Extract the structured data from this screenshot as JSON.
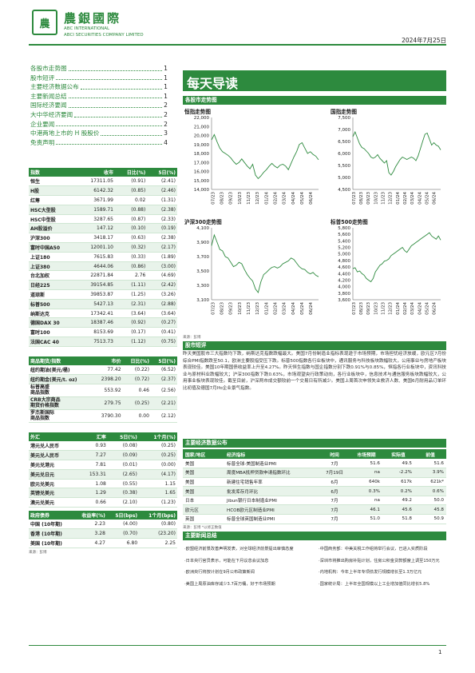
{
  "header": {
    "logo_glyph": "農",
    "brand_cn": "農銀國際",
    "brand_en1": "ABC INTERNATIONAL",
    "brand_en2": "ABCI SECURITIES COMPANY LIMITED",
    "date": "2024年7月25日",
    "brand_color": "#2d8a3e"
  },
  "toc": [
    {
      "title": "各股市走势图",
      "page": "1"
    },
    {
      "title": "股市短评",
      "page": "1"
    },
    {
      "title": "主要经济数据公布",
      "page": "1"
    },
    {
      "title": "主要新闻总结",
      "page": "1"
    },
    {
      "title": "国际经济要闻",
      "page": "2"
    },
    {
      "title": "大中华经济要闻",
      "page": "2"
    },
    {
      "title": "企业要闻",
      "page": "2"
    },
    {
      "title": "中港两地上市的 H 股股价",
      "page": "3"
    },
    {
      "title": "免责声明",
      "page": "4"
    }
  ],
  "indices": {
    "headers": [
      "指数",
      "收市",
      "日比(%)",
      "5日(%)"
    ],
    "rows": [
      [
        "恒生",
        "17311.05",
        "(0.91)",
        "(2.41)"
      ],
      [
        "H股",
        "6142.32",
        "(0.85)",
        "(2.46)"
      ],
      [
        "红筹",
        "3671.99",
        "0.02",
        "(1.31)"
      ],
      [
        "HSC大型股",
        "1589.71",
        "(0.88)",
        "(2.38)"
      ],
      [
        "HSC中型股",
        "3287.65",
        "(0.87)",
        "(2.33)"
      ],
      [
        "AH股溢价",
        "147.12",
        "(0.10)",
        "(0.19)"
      ],
      [
        "沪深300",
        "3418.17",
        "(0.63)",
        "(2.38)"
      ],
      [
        "富时中国A50",
        "12001.10",
        "(0.32)",
        "(2.17)"
      ],
      [
        "上证180",
        "7615.83",
        "(0.33)",
        "(1.89)"
      ],
      [
        "上证380",
        "4644.06",
        "(0.86)",
        "(3.00)"
      ],
      [
        "台北加权",
        "22871.84",
        "2.76",
        "(4.69)"
      ],
      [
        "日经225",
        "39154.85",
        "(1.11)",
        "(2.42)"
      ],
      [
        "道琼斯",
        "39853.87",
        "(1.25)",
        "(3.26)"
      ],
      [
        "标普500",
        "5427.13",
        "(2.31)",
        "(2.88)"
      ],
      [
        "纳斯达克",
        "17342.41",
        "(3.64)",
        "(3.64)"
      ],
      [
        "德国DAX 30",
        "18387.46",
        "(0.92)",
        "(0.27)"
      ],
      [
        "富时100",
        "8153.69",
        "(0.17)",
        "(0.41)"
      ],
      [
        "法国CAC 40",
        "7513.73",
        "(1.12)",
        "(0.75)"
      ]
    ]
  },
  "commodities": {
    "headers": [
      "商品期货/指数",
      "市价",
      "日比(%)",
      "5日(%)"
    ],
    "rows": [
      [
        "纽约期油(美元/桶)",
        "77.42",
        "(0.22)",
        "(6.52)"
      ],
      [
        "纽约期金(美元/t. oz)",
        "2398.20",
        "(0.72)",
        "(2.37)"
      ],
      [
        "标普高盛\n商品指数",
        "553.92",
        "0.46",
        "(2.56)"
      ],
      [
        "CRB大宗商品\n期货价格指数",
        "279.75",
        "(0.25)",
        "(2.21)"
      ],
      [
        "罗杰斯国际\n商品指数",
        "3790.30",
        "0.00",
        "(2.12)"
      ]
    ]
  },
  "fx": {
    "headers": [
      "外汇",
      "汇率",
      "5日(%)",
      "1个月(%)"
    ],
    "rows": [
      [
        "港元兑人民币",
        "0.93",
        "(0.08)",
        "(0.25)"
      ],
      [
        "美元兑人民币",
        "7.27",
        "(0.09)",
        "(0.25)"
      ],
      [
        "美元兑港元",
        "7.81",
        "(0.01)",
        "(0.00)"
      ],
      [
        "美元兑日元",
        "153.31",
        "(2.65)",
        "(4.17)"
      ],
      [
        "欧元兑美元",
        "1.08",
        "(0.55)",
        "1.15"
      ],
      [
        "英镑兑美元",
        "1.29",
        "(0.38)",
        "1.65"
      ],
      [
        "澳元兑美元",
        "0.66",
        "(2.10)",
        "(1.23)"
      ]
    ]
  },
  "bonds": {
    "headers": [
      "政府债券",
      "收益率(%)",
      "5日(bps)",
      "1个月(bps)"
    ],
    "rows": [
      [
        "中国 (10年期)",
        "2.23",
        "(4.00)",
        "(0.80)"
      ],
      [
        "香港 (10年期)",
        "3.28",
        "(0.70)",
        "(23.20)"
      ],
      [
        "美国 (10年期)",
        "4.27",
        "6.80",
        "2.25"
      ]
    ]
  },
  "source_note": "来源：彭博",
  "main": {
    "title": "每天导读",
    "charts_section": "各股市走势图",
    "chart_source": "来源：彭博",
    "commentary_title": "股市短评",
    "commentary": "昨天美国股市三大指数均下跌，纳斯达克指数跌幅最大。美国7月份制造业指标表现逊于市场预期，市场担忧经济放缓，欧元区7月份综合PMI指数跌至50.1，欧洲主要股指受压下跌。标普500指数各行业板块中，通讯服务与科技板块跌幅较大，公用事业与房地产板块表现较佳。美国10年期国债收益率上升至4.27%。昨天恒生指数与国企指数分别下跌0.91%与0.85%，恒指各行业板块中，资讯科技业与原材料业跌幅较大；沪深300指数下跌0.63%，市场观望央行政策动向，各行业板块中，信息技术与通信服务板块跌幅较大，公用事业板块表现较佳。截至目前，沪深两市成交额较前一个交易日有所减少。美国上周首次申领失业救济人数、美国6月耐用品订单环比初值及德国7月Ifo企业景气指数。",
    "econ_title": "主要经济数据公布",
    "econ_headers": [
      "国家/地区",
      "经济指标",
      "时间",
      "市场预期",
      "实际值",
      "前值"
    ],
    "econ_rows": [
      [
        "美国",
        "标普全球-美国制造业PMI",
        "7月",
        "51.6",
        "49.5",
        "51.6"
      ],
      [
        "美国",
        "周度MBA抵押贷款申请指数环比",
        "7月19日",
        "na",
        "-2.2%",
        "3.9%"
      ],
      [
        "美国",
        "新建住宅销售年率",
        "6月",
        "640k",
        "617k",
        "621k*"
      ],
      [
        "美国",
        "批发库存月环比",
        "6月",
        "0.3%",
        "0.2%",
        "0.6%"
      ],
      [
        "日本",
        "Jibun银行日本制造业PMI",
        "7月",
        "na",
        "49.2",
        "50.0"
      ],
      [
        "欧元区",
        "HCOB欧元区制造业PMI",
        "7月",
        "46.1",
        "45.6",
        "45.8"
      ],
      [
        "英国",
        "标普全球英国制造业PMI",
        "7月",
        "51.0",
        "51.8",
        "50.9"
      ]
    ],
    "econ_note": "来源：彭博 *以修正数值",
    "news_title": "主要新闻总结",
    "news_left": [
      "·欧盟经济前景改善声明发表，对全球经济前景提出审慎态度",
      "·日本央行官员表示，可能在下月议息会议加息",
      "·欧洲央行将按计划在9月公布政策新闻",
      "·美国上周原油库存减少3.7百万桶，好于市场预期"
    ],
    "news_right": [
      "·中国商务部：中美关税工作组将举行会议，已进入实质阶段",
      "·深圳市将推出购房补贴计划，住房公积金贷款额度上调至150万元",
      "·内地机构：今年上半年专项债发行规模增长至1.3万亿元",
      "·国家统计局：上半年全国规模以上工业增加值同比增长5.8%"
    ]
  },
  "charts": [
    {
      "name": "恒指走势图",
      "type": "line",
      "color": "#2d8a3e",
      "ylim": [
        14000,
        22000
      ],
      "yticks": [
        "22,000",
        "21,000",
        "20,000",
        "19,000",
        "18,000",
        "17,000",
        "16,000",
        "15,000",
        "14,000"
      ],
      "xticks": [
        "07/23",
        "08/23",
        "09/23",
        "10/23",
        "11/23",
        "12/23",
        "01/24",
        "02/24",
        "03/24",
        "04/24",
        "05/24",
        "06/24"
      ],
      "values": [
        19500,
        20100,
        19300,
        18600,
        18200,
        18000,
        17800,
        17500,
        17100,
        16800,
        17000,
        17400,
        17000,
        16600,
        16300,
        16800,
        15600,
        15200,
        15500,
        15900,
        16200,
        16600,
        16900,
        16600,
        16400,
        16700,
        16800,
        16600,
        16200,
        16900,
        17600,
        18200,
        19000,
        19200,
        18600,
        18000,
        18200,
        17900,
        17700,
        17300
      ]
    },
    {
      "name": "国指走势图",
      "type": "line",
      "color": "#2d8a3e",
      "ylim": [
        4500,
        7500
      ],
      "yticks": [
        "7,500",
        "7,000",
        "6,500",
        "6,000",
        "5,500",
        "5,000",
        "4,500"
      ],
      "xticks": [
        "07/23",
        "08/23",
        "09/23",
        "10/23",
        "11/23",
        "12/23",
        "01/24",
        "02/24",
        "03/24",
        "04/24",
        "05/24",
        "06/24"
      ],
      "values": [
        6700,
        6900,
        6650,
        6400,
        6250,
        6200,
        6100,
        6000,
        5850,
        5800,
        5850,
        5950,
        5800,
        5700,
        5600,
        5700,
        5200,
        5100,
        5250,
        5450,
        5600,
        5750,
        5850,
        5800,
        5750,
        5800,
        5850,
        5800,
        5700,
        5900,
        6200,
        6500,
        6800,
        6850,
        6600,
        6350,
        6450,
        6350,
        6300,
        6150
      ]
    },
    {
      "name": "沪深300走势图",
      "type": "line",
      "color": "#2d8a3e",
      "ylim": [
        3100,
        4100
      ],
      "yticks": [
        "4,100",
        "3,900",
        "3,700",
        "3,500",
        "3,300",
        "3,100"
      ],
      "xticks": [
        "07/23",
        "08/23",
        "09/23",
        "10/23",
        "11/23",
        "12/23",
        "01/24",
        "02/24",
        "03/24",
        "04/24",
        "05/24",
        "06/24"
      ],
      "values": [
        3850,
        4000,
        3900,
        3800,
        3780,
        3700,
        3680,
        3620,
        3560,
        3580,
        3620,
        3600,
        3520,
        3450,
        3400,
        3360,
        3250,
        3200,
        3350,
        3450,
        3480,
        3520,
        3550,
        3560,
        3540,
        3560,
        3600,
        3620,
        3640,
        3680,
        3660,
        3610,
        3560,
        3530,
        3520,
        3480,
        3460,
        3480,
        3440,
        3420
      ]
    },
    {
      "name": "标普500走势图",
      "type": "line",
      "color": "#2d8a3e",
      "ylim": [
        3600,
        5800
      ],
      "yticks": [
        "5,800",
        "5,600",
        "5,400",
        "5,200",
        "5,000",
        "4,800",
        "4,600",
        "4,400",
        "4,200",
        "4,000",
        "3,800",
        "3,600"
      ],
      "xticks": [
        "07/23",
        "08/23",
        "09/23",
        "10/23",
        "11/23",
        "12/23",
        "01/24",
        "02/24",
        "03/24",
        "04/24",
        "05/24",
        "06/24"
      ],
      "values": [
        4550,
        4580,
        4450,
        4480,
        4400,
        4350,
        4250,
        4200,
        4150,
        4250,
        4450,
        4550,
        4650,
        4700,
        4780,
        4800,
        4850,
        4950,
        5000,
        5050,
        5100,
        5150,
        5200,
        5100,
        5050,
        5150,
        5250,
        5300,
        5350,
        5400,
        5450,
        5500,
        5550,
        5600,
        5650,
        5550,
        5500,
        5450,
        5550,
        5427
      ]
    }
  ],
  "footer": {
    "page": "1"
  }
}
